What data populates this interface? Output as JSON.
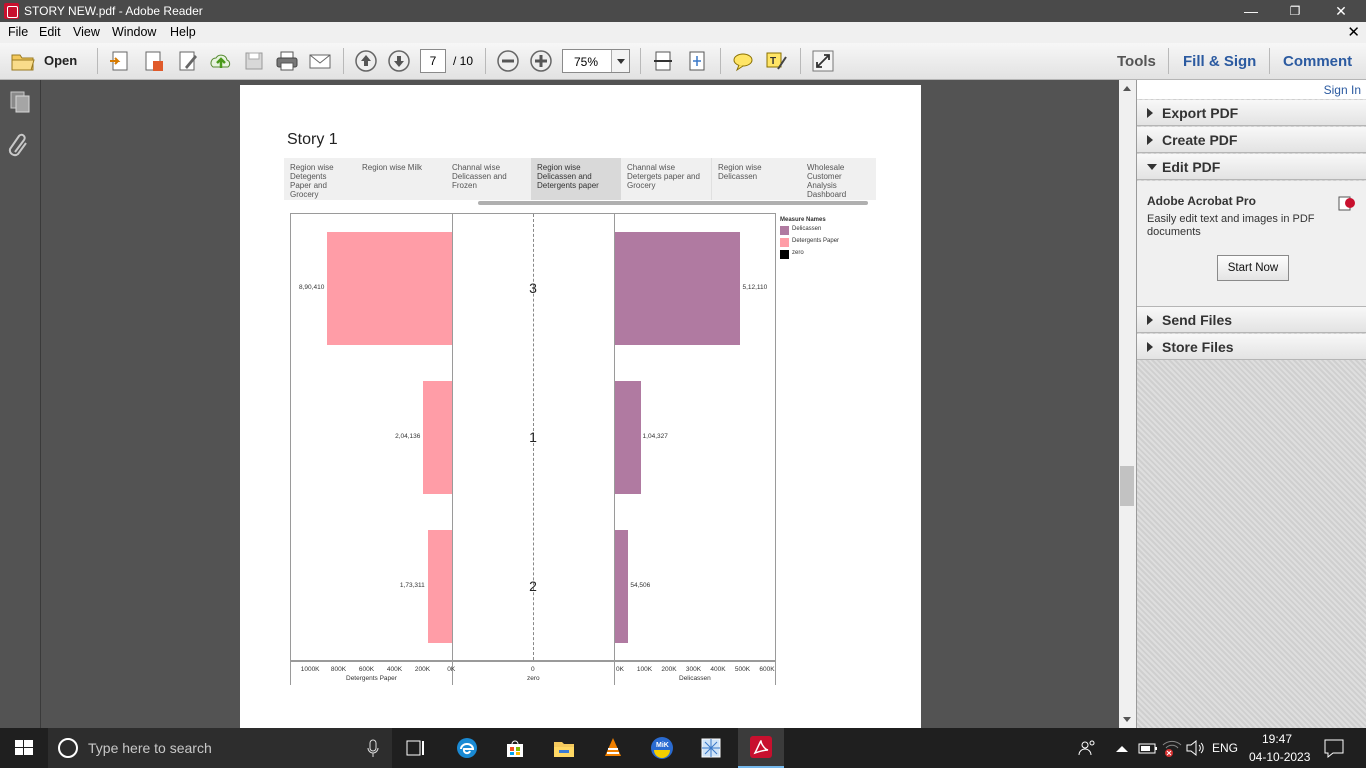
{
  "window": {
    "title": "STORY NEW.pdf - Adobe Reader",
    "minimize": "—",
    "restore": "❐",
    "close": "✕"
  },
  "menu": {
    "items": [
      "File",
      "Edit",
      "View",
      "Window",
      "Help"
    ],
    "close_doc": "✕"
  },
  "toolbar": {
    "open_label": "Open",
    "page_current": "7",
    "page_total": "/ 10",
    "zoom": "75%",
    "tools": "Tools",
    "fill_sign": "Fill & Sign",
    "comment": "Comment"
  },
  "rpanel": {
    "sign_in": "Sign In",
    "export_pdf": "Export PDF",
    "create_pdf": "Create PDF",
    "edit_pdf": "Edit PDF",
    "acrobat_title": "Adobe Acrobat Pro",
    "acrobat_desc": "Easily edit text and images in PDF documents",
    "start_now": "Start Now",
    "send_files": "Send Files",
    "store_files": "Store Files"
  },
  "story": {
    "title": "Story 1",
    "tabs": [
      "Region wise Detegents Paper and Grocery",
      "Region wise Milk",
      "Channal wise Delicassen and Frozen",
      "Region wise Delicassen and Detergents paper",
      "Channal wise Detergets paper and Grocery",
      "Region wise Delicassen",
      "Wholesale Customer Analysis Dashboard"
    ]
  },
  "chart_data": {
    "type": "bar",
    "orientation": "horizontal",
    "categories": [
      "3",
      "1",
      "2"
    ],
    "series": [
      {
        "name": "Detergents Paper",
        "values": [
          890410,
          204136,
          173311
        ],
        "labels": [
          "8,90,410",
          "2,04,136",
          "1,73,311"
        ],
        "color": "#ff9da7"
      },
      {
        "name": "Delicassen",
        "values": [
          512110,
          104327,
          54506
        ],
        "labels": [
          "5,12,110",
          "1,04,327",
          "54,506"
        ],
        "color": "#b07aa1"
      }
    ],
    "legend_title": "Measure Names",
    "legend": [
      {
        "name": "Delicassen",
        "color": "#b07aa1"
      },
      {
        "name": "Detergents Paper",
        "color": "#ff9da7"
      },
      {
        "name": "zero",
        "color": "#000000"
      }
    ],
    "left_axis": {
      "label": "Detergents Paper",
      "ticks": [
        "1000K",
        "800K",
        "600K",
        "400K",
        "200K",
        "0K"
      ],
      "range": [
        0,
        1000000
      ],
      "reversed": true
    },
    "middle_axis": {
      "label": "zero",
      "ticks": [
        "0"
      ]
    },
    "right_axis": {
      "label": "Delicassen",
      "ticks": [
        "0K",
        "100K",
        "200K",
        "300K",
        "400K",
        "500K",
        "600K"
      ],
      "range": [
        0,
        600000
      ]
    }
  },
  "taskbar": {
    "search": "Type here to search",
    "lang": "ENG",
    "time": "19:47",
    "date": "04-10-2023"
  }
}
